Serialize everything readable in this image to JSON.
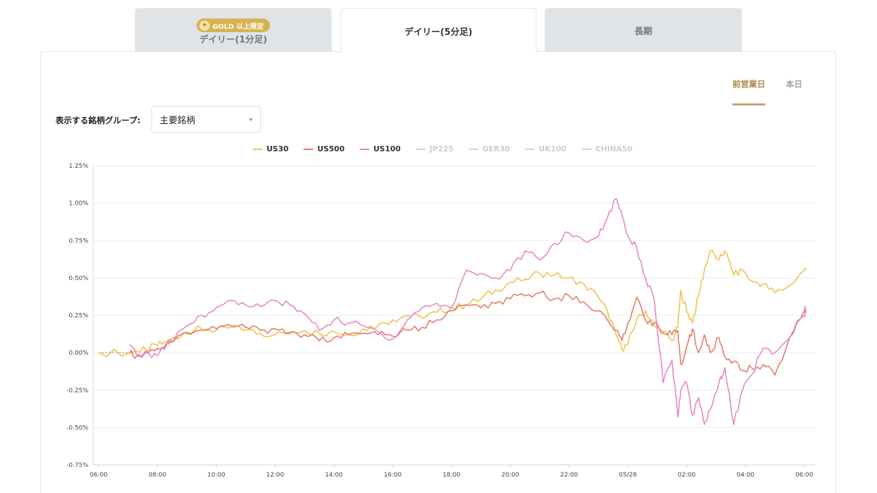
{
  "tabs": [
    {
      "badge": "GOLD 以上限定",
      "label": "デイリー(1分足)",
      "active": false
    },
    {
      "label": "デイリー(5分足)",
      "active": true
    },
    {
      "label": "長期",
      "active": false
    }
  ],
  "period": {
    "items": [
      "前営業日",
      "本日"
    ],
    "active": 0
  },
  "group": {
    "label": "表示する銘柄グループ:",
    "value": "主要銘柄"
  },
  "colors": {
    "US30": "#f0c04a",
    "US500": "#e07b6b",
    "US100": "#e784c4",
    "inactive": "#cfd3d6",
    "grid": "#e9ecee",
    "gold": "#d7b34f"
  },
  "chart_data": {
    "type": "line",
    "legend": [
      {
        "name": "US30",
        "active": true
      },
      {
        "name": "US500",
        "active": true
      },
      {
        "name": "US100",
        "active": true
      },
      {
        "name": "JP225",
        "active": false
      },
      {
        "name": "GER30",
        "active": false
      },
      {
        "name": "UK100",
        "active": false
      },
      {
        "name": "CHINA50",
        "active": false
      }
    ],
    "y_ticks": [
      "1.25%",
      "1.00%",
      "0.75%",
      "0.50%",
      "0.25%",
      "0.00%",
      "-0.25%",
      "-0.50%",
      "-0.75%"
    ],
    "ylim": [
      -0.75,
      1.25
    ],
    "x_ticks": [
      "06:00",
      "08:00",
      "10:00",
      "12:00",
      "14:00",
      "16:00",
      "18:00",
      "20:00",
      "22:00",
      "05/28",
      "02:00",
      "04:00",
      "06:00"
    ],
    "xlim_hours": [
      0,
      24.05
    ],
    "flat_start_hours": [
      0,
      1.05
    ],
    "series": [
      {
        "name": "US30",
        "points": [
          [
            0,
            0
          ],
          [
            1.05,
            0
          ],
          [
            1.3,
            0.01
          ],
          [
            1.6,
            0.02
          ],
          [
            2.0,
            0.05
          ],
          [
            2.3,
            0.07
          ],
          [
            2.6,
            0.1
          ],
          [
            3.0,
            0.14
          ],
          [
            3.5,
            0.16
          ],
          [
            4.0,
            0.15
          ],
          [
            4.5,
            0.17
          ],
          [
            5.0,
            0.15
          ],
          [
            5.5,
            0.13
          ],
          [
            6.0,
            0.12
          ],
          [
            6.5,
            0.14
          ],
          [
            7.0,
            0.15
          ],
          [
            7.5,
            0.13
          ],
          [
            8.0,
            0.14
          ],
          [
            8.5,
            0.12
          ],
          [
            9.0,
            0.16
          ],
          [
            9.5,
            0.18
          ],
          [
            10.0,
            0.22
          ],
          [
            10.5,
            0.25
          ],
          [
            11.0,
            0.23
          ],
          [
            11.5,
            0.27
          ],
          [
            12.0,
            0.3
          ],
          [
            12.5,
            0.32
          ],
          [
            13.0,
            0.36
          ],
          [
            13.5,
            0.42
          ],
          [
            14.0,
            0.47
          ],
          [
            14.5,
            0.49
          ],
          [
            15.0,
            0.53
          ],
          [
            15.5,
            0.52
          ],
          [
            16.0,
            0.5
          ],
          [
            16.5,
            0.46
          ],
          [
            17.0,
            0.37
          ],
          [
            17.3,
            0.28
          ],
          [
            17.6,
            0.12
          ],
          [
            17.8,
            0.02
          ],
          [
            18.0,
            0.06
          ],
          [
            18.3,
            0.22
          ],
          [
            18.6,
            0.28
          ],
          [
            18.9,
            0.18
          ],
          [
            19.2,
            0.14
          ],
          [
            19.5,
            0.08
          ],
          [
            19.7,
            0.17
          ],
          [
            19.8,
            0.42
          ],
          [
            20.0,
            0.28
          ],
          [
            20.2,
            0.2
          ],
          [
            20.4,
            0.38
          ],
          [
            20.6,
            0.55
          ],
          [
            20.8,
            0.68
          ],
          [
            21.1,
            0.62
          ],
          [
            21.3,
            0.68
          ],
          [
            21.6,
            0.52
          ],
          [
            21.9,
            0.55
          ],
          [
            22.2,
            0.48
          ],
          [
            22.6,
            0.46
          ],
          [
            23.0,
            0.4
          ],
          [
            23.5,
            0.45
          ],
          [
            24.0,
            0.55
          ],
          [
            24.05,
            0.56
          ]
        ]
      },
      {
        "name": "US500",
        "points": [
          [
            1.05,
            0
          ],
          [
            1.3,
            -0.02
          ],
          [
            1.6,
            0.01
          ],
          [
            2.0,
            0.03
          ],
          [
            2.3,
            0.06
          ],
          [
            2.6,
            0.09
          ],
          [
            3.0,
            0.13
          ],
          [
            3.5,
            0.15
          ],
          [
            4.0,
            0.16
          ],
          [
            4.5,
            0.18
          ],
          [
            5.0,
            0.17
          ],
          [
            5.5,
            0.15
          ],
          [
            6.0,
            0.16
          ],
          [
            6.5,
            0.13
          ],
          [
            7.0,
            0.12
          ],
          [
            7.5,
            0.08
          ],
          [
            8.0,
            0.1
          ],
          [
            8.5,
            0.12
          ],
          [
            9.0,
            0.13
          ],
          [
            9.5,
            0.12
          ],
          [
            10.0,
            0.11
          ],
          [
            10.5,
            0.15
          ],
          [
            11.0,
            0.17
          ],
          [
            11.5,
            0.22
          ],
          [
            12.0,
            0.28
          ],
          [
            12.5,
            0.32
          ],
          [
            13.0,
            0.3
          ],
          [
            13.5,
            0.33
          ],
          [
            14.0,
            0.36
          ],
          [
            14.5,
            0.38
          ],
          [
            15.0,
            0.4
          ],
          [
            15.5,
            0.36
          ],
          [
            16.0,
            0.38
          ],
          [
            16.5,
            0.34
          ],
          [
            17.0,
            0.28
          ],
          [
            17.3,
            0.22
          ],
          [
            17.6,
            0.15
          ],
          [
            17.8,
            0.08
          ],
          [
            18.0,
            0.2
          ],
          [
            18.3,
            0.37
          ],
          [
            18.6,
            0.22
          ],
          [
            18.9,
            0.2
          ],
          [
            19.2,
            0.13
          ],
          [
            19.5,
            0.12
          ],
          [
            19.7,
            0.15
          ],
          [
            19.8,
            -0.08
          ],
          [
            20.0,
            0.04
          ],
          [
            20.2,
            0.16
          ],
          [
            20.4,
            0.0
          ],
          [
            20.6,
            0.12
          ],
          [
            20.8,
            0.0
          ],
          [
            21.1,
            0.1
          ],
          [
            21.3,
            -0.03
          ],
          [
            21.6,
            -0.06
          ],
          [
            21.9,
            -0.12
          ],
          [
            22.2,
            -0.1
          ],
          [
            22.6,
            -0.08
          ],
          [
            23.0,
            -0.15
          ],
          [
            23.5,
            0.1
          ],
          [
            24.0,
            0.28
          ],
          [
            24.05,
            0.29
          ]
        ]
      },
      {
        "name": "US100",
        "points": [
          [
            1.05,
            0.05
          ],
          [
            1.3,
            -0.02
          ],
          [
            1.6,
            0.0
          ],
          [
            2.0,
            -0.02
          ],
          [
            2.3,
            0.05
          ],
          [
            2.6,
            0.1
          ],
          [
            3.0,
            0.18
          ],
          [
            3.5,
            0.25
          ],
          [
            4.0,
            0.3
          ],
          [
            4.5,
            0.35
          ],
          [
            5.0,
            0.32
          ],
          [
            5.5,
            0.31
          ],
          [
            6.0,
            0.35
          ],
          [
            6.5,
            0.32
          ],
          [
            7.0,
            0.26
          ],
          [
            7.5,
            0.15
          ],
          [
            8.0,
            0.22
          ],
          [
            8.5,
            0.2
          ],
          [
            9.0,
            0.18
          ],
          [
            9.5,
            0.14
          ],
          [
            10.0,
            0.09
          ],
          [
            10.5,
            0.22
          ],
          [
            11.0,
            0.3
          ],
          [
            11.5,
            0.33
          ],
          [
            12.0,
            0.3
          ],
          [
            12.5,
            0.55
          ],
          [
            13.0,
            0.53
          ],
          [
            13.5,
            0.5
          ],
          [
            14.0,
            0.55
          ],
          [
            14.5,
            0.68
          ],
          [
            15.0,
            0.62
          ],
          [
            15.5,
            0.73
          ],
          [
            16.0,
            0.8
          ],
          [
            16.5,
            0.75
          ],
          [
            17.0,
            0.78
          ],
          [
            17.3,
            0.9
          ],
          [
            17.6,
            1.03
          ],
          [
            17.8,
            0.92
          ],
          [
            18.0,
            0.78
          ],
          [
            18.3,
            0.7
          ],
          [
            18.6,
            0.5
          ],
          [
            18.9,
            0.35
          ],
          [
            19.2,
            -0.2
          ],
          [
            19.5,
            -0.05
          ],
          [
            19.7,
            -0.43
          ],
          [
            19.8,
            -0.25
          ],
          [
            20.0,
            -0.2
          ],
          [
            20.2,
            -0.42
          ],
          [
            20.4,
            -0.3
          ],
          [
            20.6,
            -0.48
          ],
          [
            20.8,
            -0.38
          ],
          [
            21.1,
            -0.2
          ],
          [
            21.3,
            -0.1
          ],
          [
            21.6,
            -0.48
          ],
          [
            21.9,
            -0.25
          ],
          [
            22.2,
            -0.15
          ],
          [
            22.6,
            0.03
          ],
          [
            23.0,
            0.0
          ],
          [
            23.5,
            0.1
          ],
          [
            24.0,
            0.25
          ],
          [
            24.05,
            0.26
          ]
        ]
      }
    ]
  }
}
